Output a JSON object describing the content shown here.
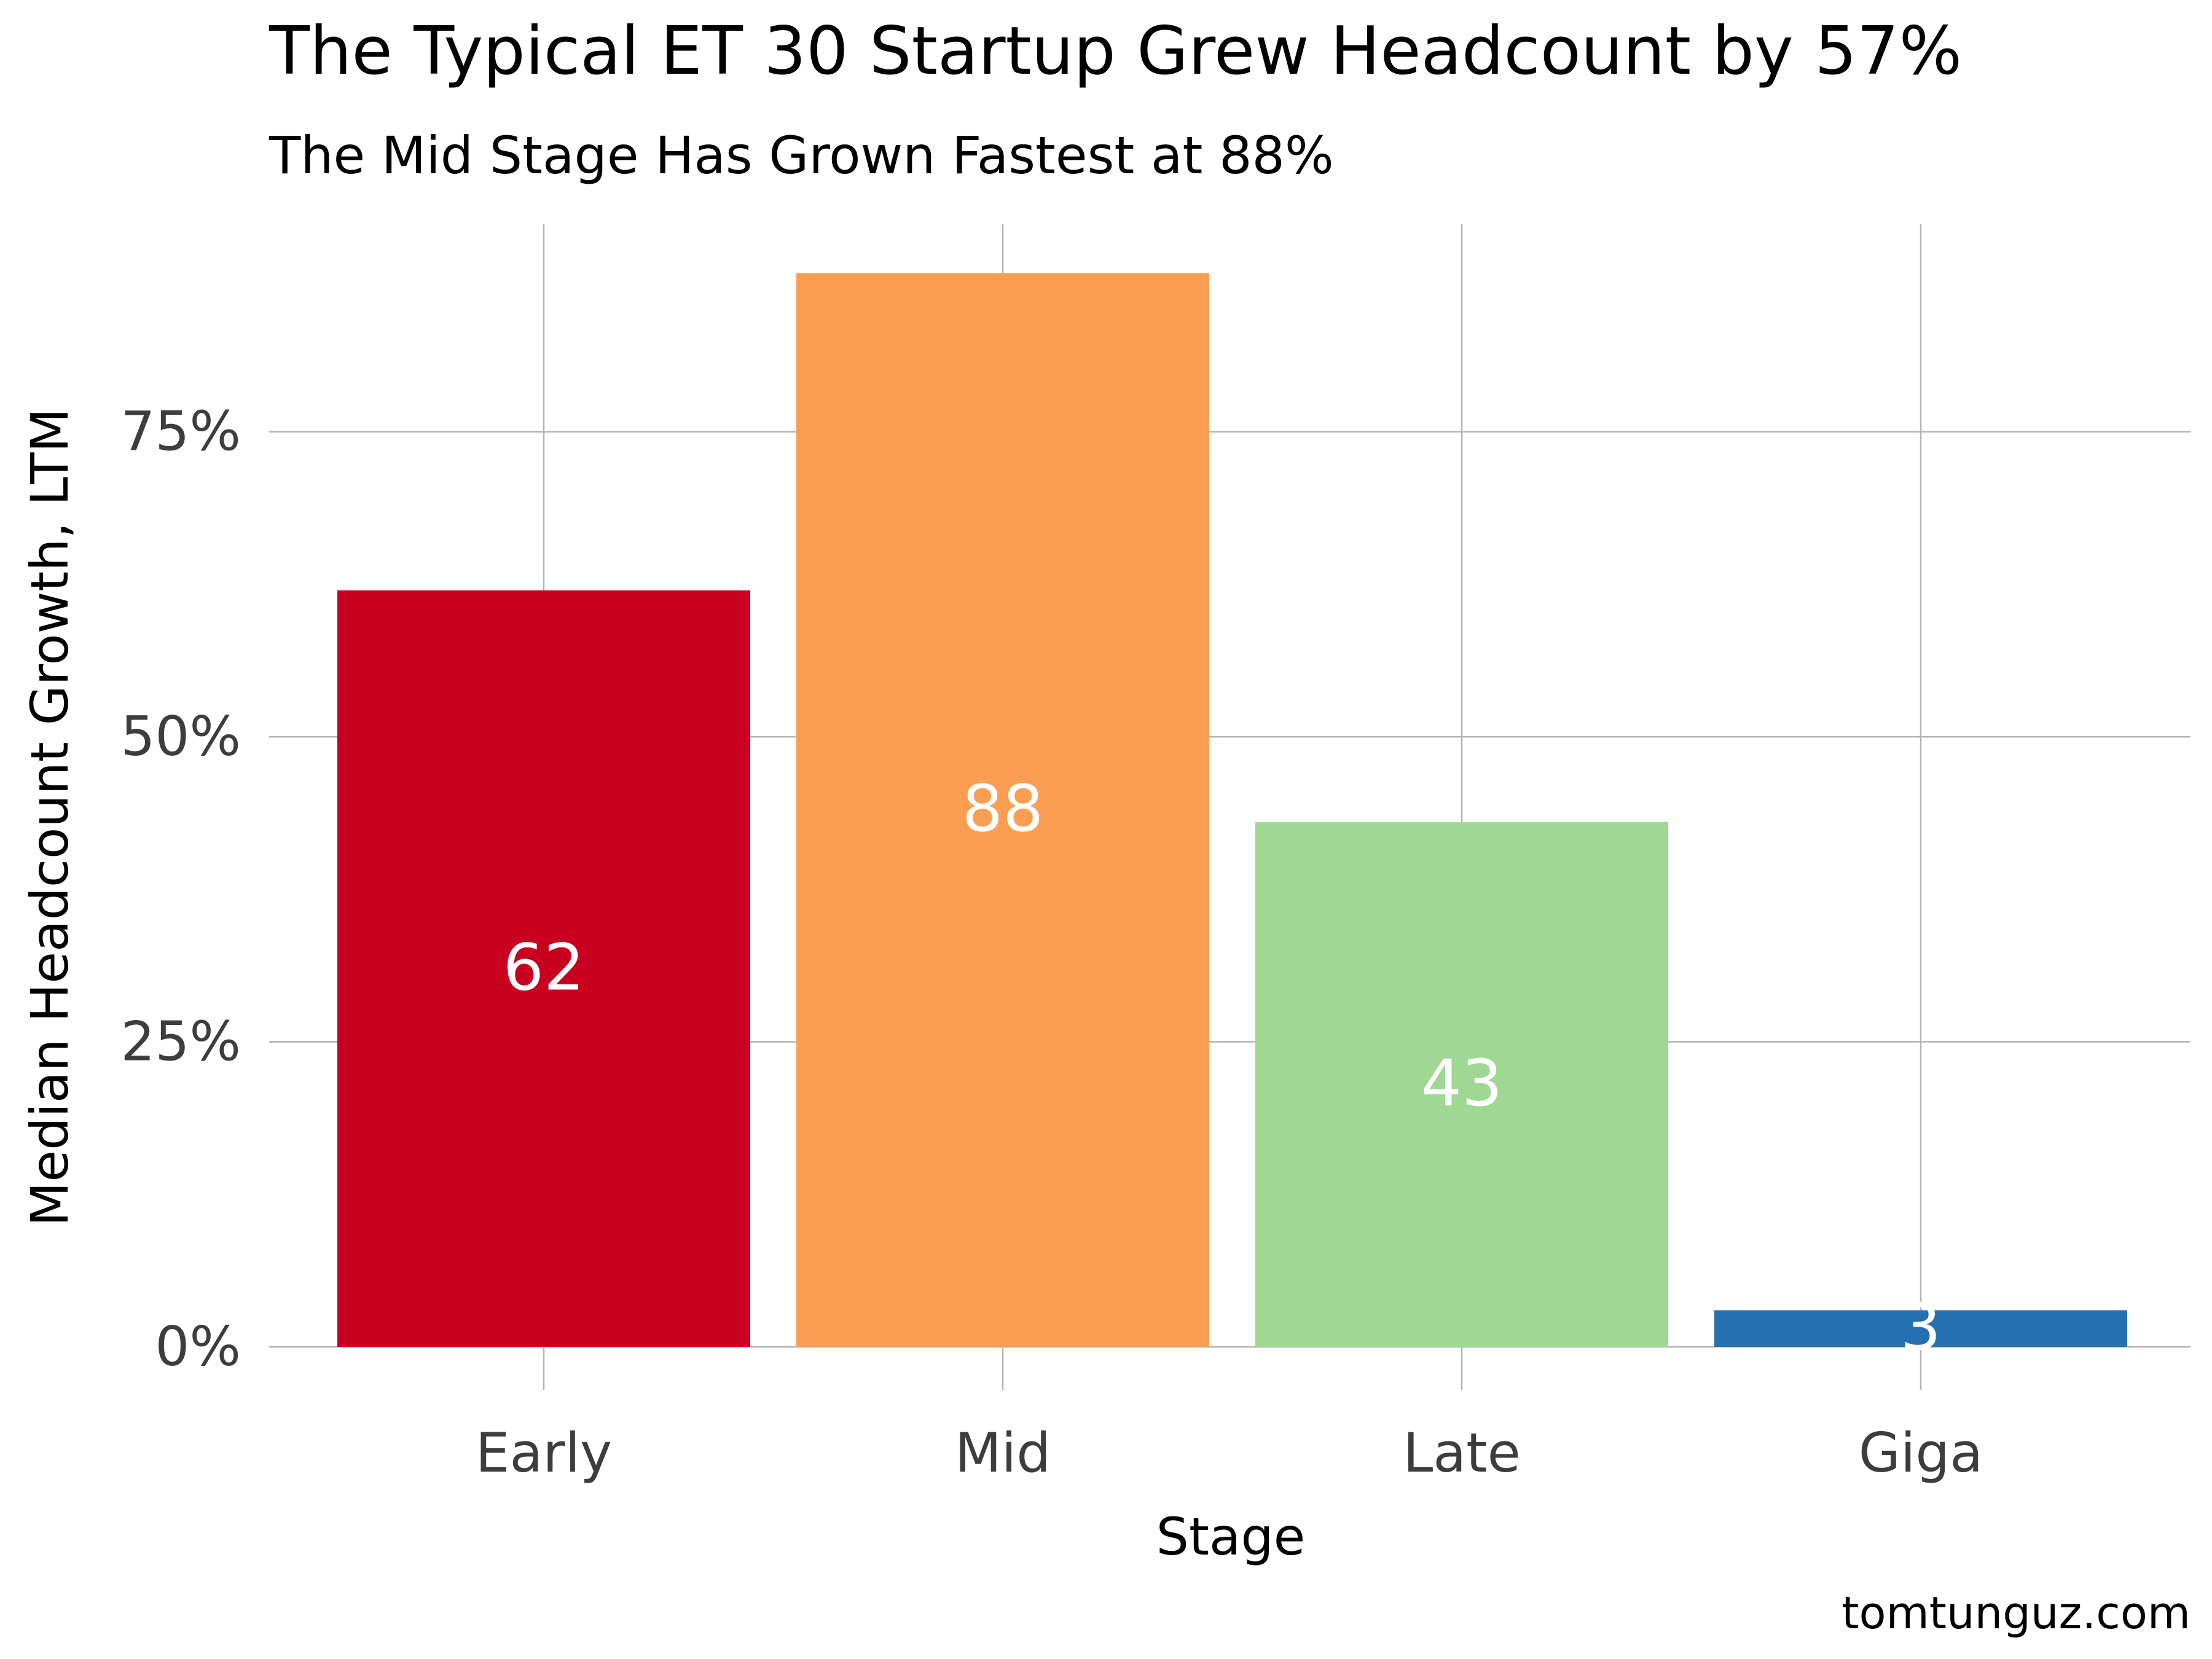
{
  "chart_data": {
    "type": "bar",
    "title": "The Typical ET 30 Startup Grew Headcount by 57%",
    "subtitle": "The Mid Stage Has Grown Fastest at 88%",
    "xlabel": "Stage",
    "ylabel": "Median Headcount Growth, LTM",
    "categories": [
      "Early",
      "Mid",
      "Late",
      "Giga"
    ],
    "values": [
      62,
      88,
      43,
      3
    ],
    "value_labels": [
      "62",
      "88",
      "43",
      "3"
    ],
    "bar_colors": [
      "#ca0020",
      "#fa9f52",
      "#9ed892",
      "#2470b0"
    ],
    "ylim": [
      0,
      92
    ],
    "yticks": [
      0,
      25,
      50,
      75
    ],
    "ytick_labels": [
      "0%",
      "25%",
      "50%",
      "75%"
    ],
    "grid": true,
    "legend": "none",
    "caption": "tomtunguz.com"
  }
}
